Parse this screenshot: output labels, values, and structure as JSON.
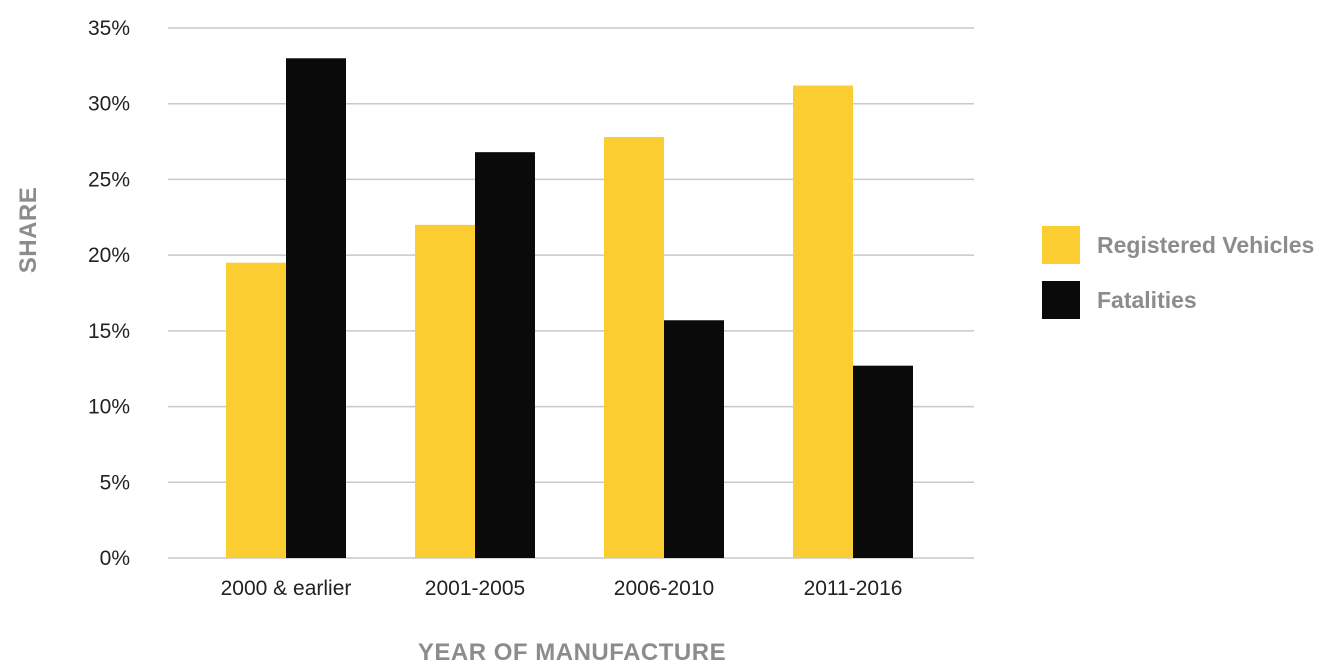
{
  "chart_data": {
    "type": "bar",
    "title": "",
    "xlabel": "YEAR OF MANUFACTURE",
    "ylabel": "SHARE",
    "ylim": [
      0,
      35
    ],
    "y_ticks": [
      "0%",
      "5%",
      "10%",
      "15%",
      "20%",
      "25%",
      "30%",
      "35%"
    ],
    "y_tick_values": [
      0,
      5,
      10,
      15,
      20,
      25,
      30,
      35
    ],
    "grid": true,
    "legend_position": "right",
    "categories": [
      "2000 & earlier",
      "2001-2005",
      "2006-2010",
      "2011-2016"
    ],
    "series": [
      {
        "name": "Registered Vehicles",
        "color": "#fccd30",
        "values": [
          19.5,
          22.0,
          27.8,
          31.2
        ]
      },
      {
        "name": "Fatalities",
        "color": "#0a0a0a",
        "values": [
          33.0,
          26.8,
          15.7,
          12.7
        ]
      }
    ]
  }
}
